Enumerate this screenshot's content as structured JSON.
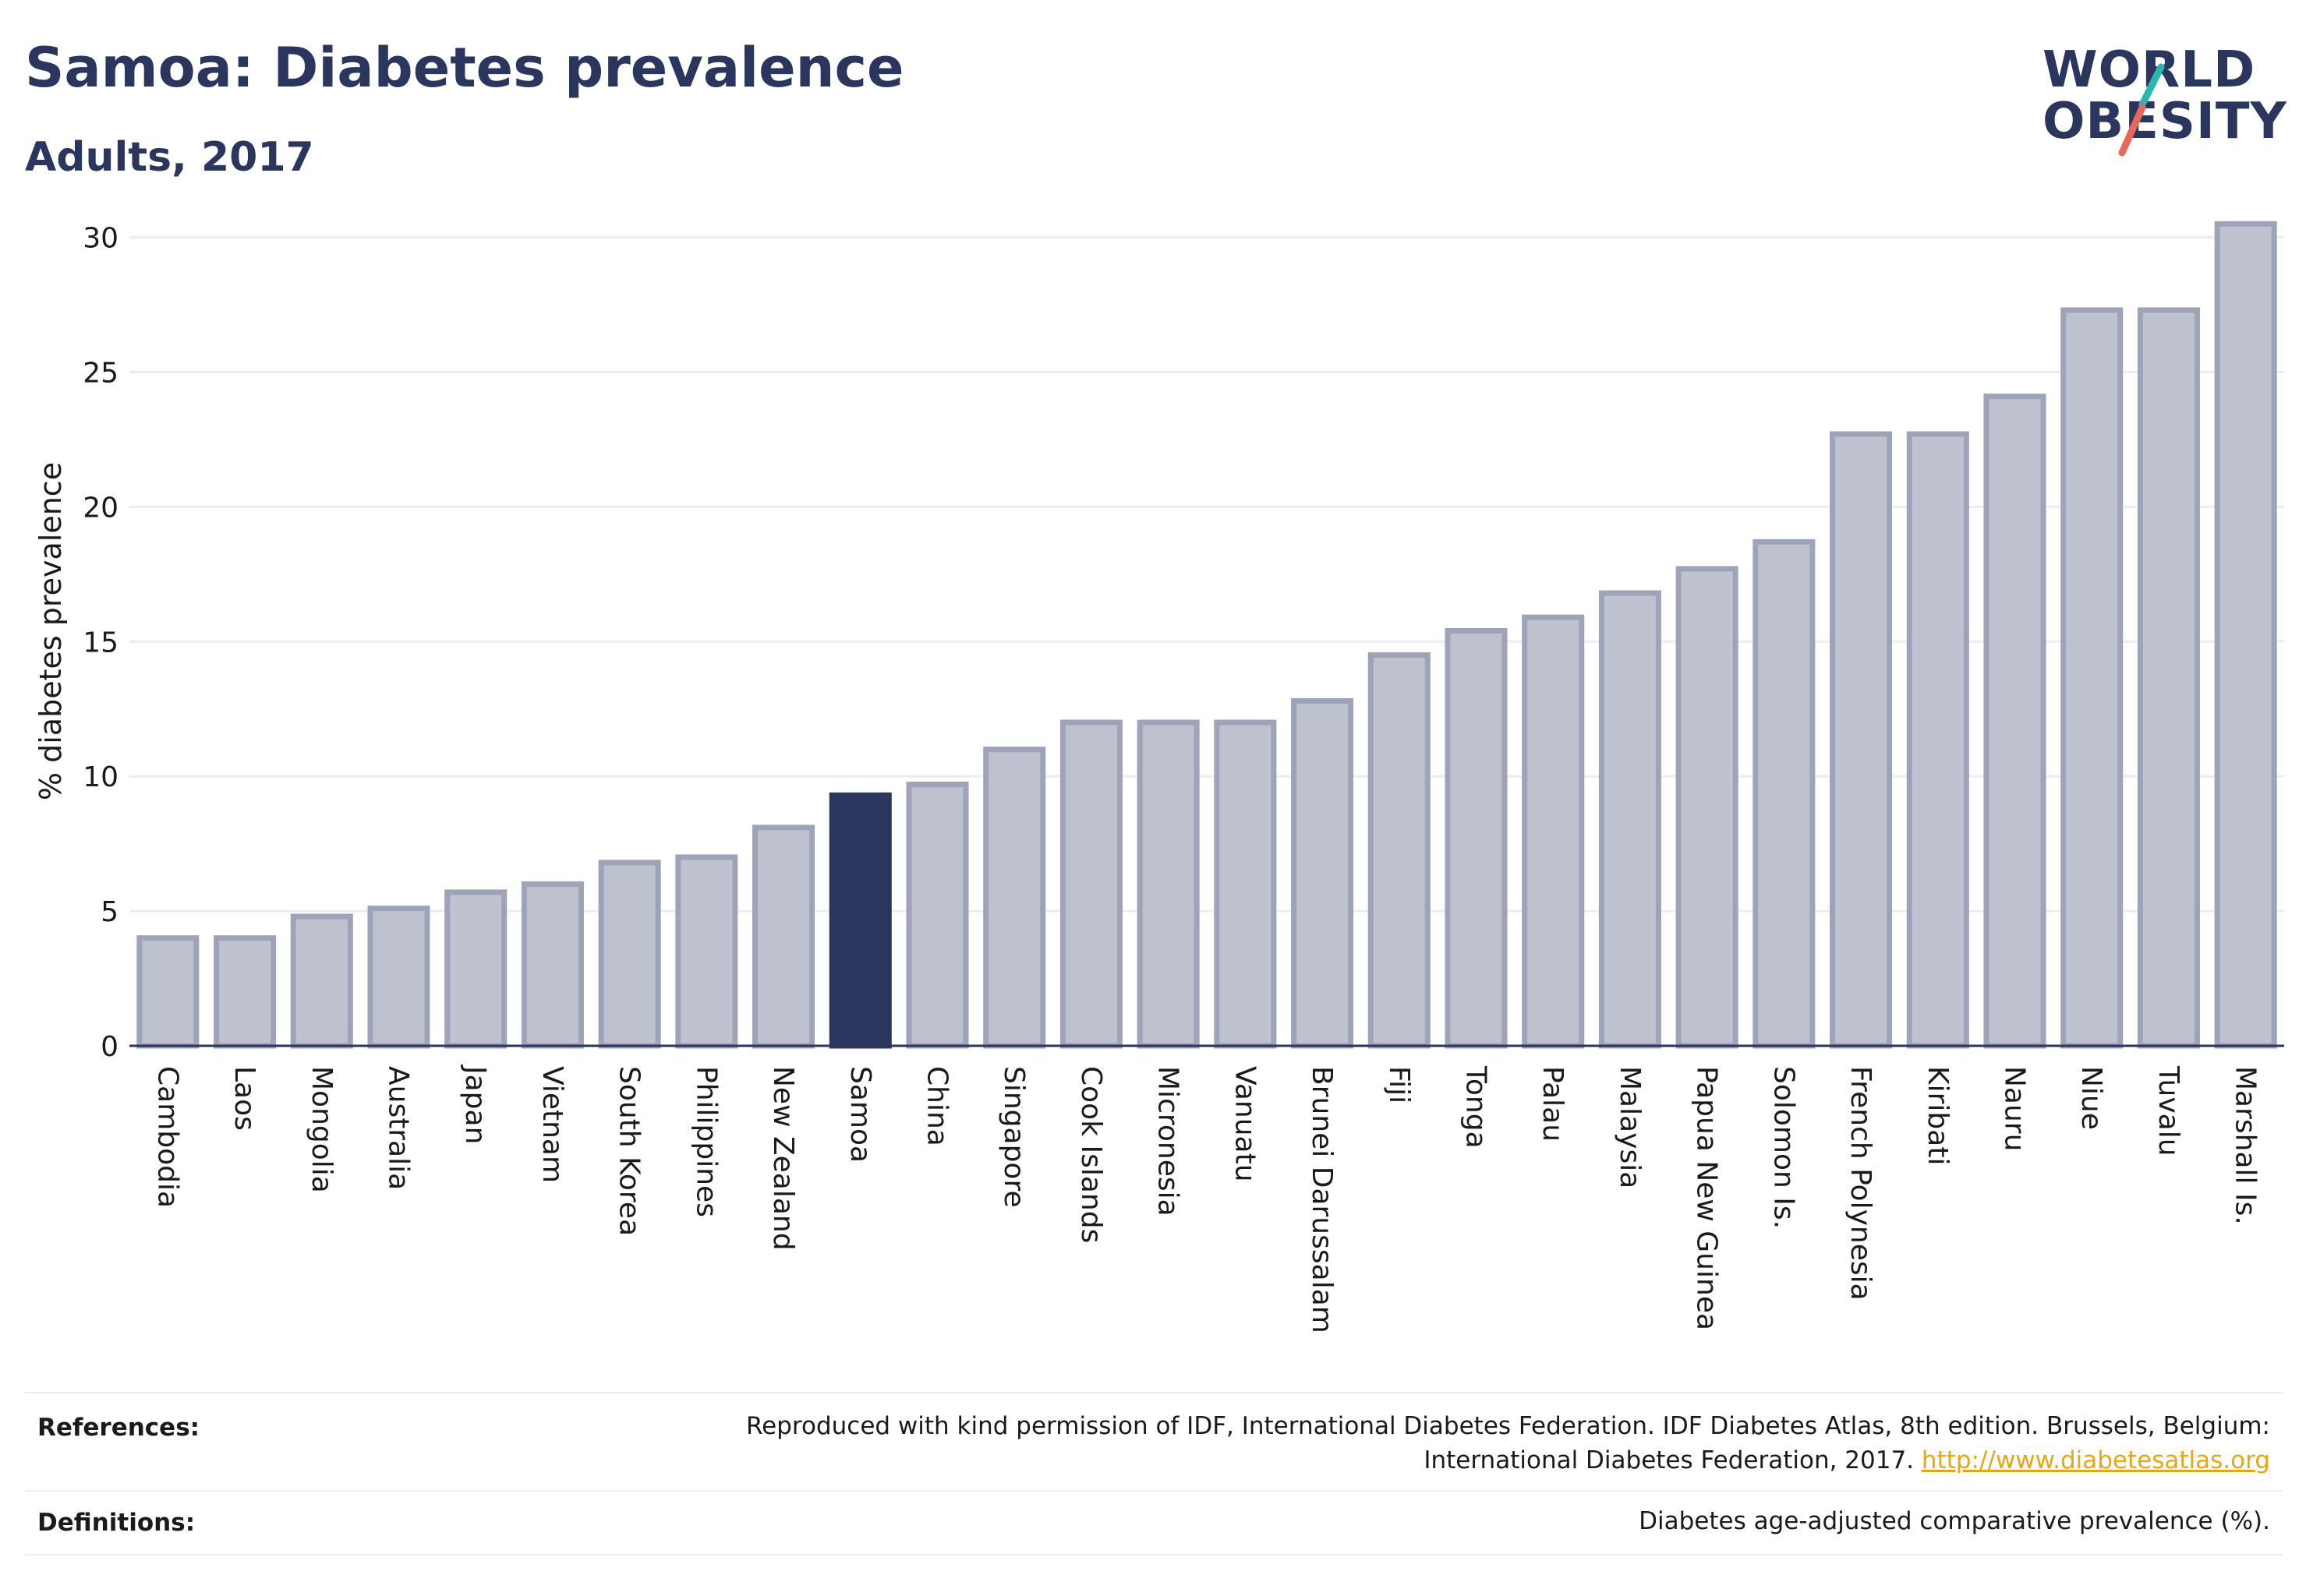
{
  "header": {
    "title": "Samoa: Diabetes prevalence",
    "subtitle": "Adults, 2017"
  },
  "logo": {
    "line1": "WORLD",
    "line2": "OBESITY",
    "accent_teal": "#2bb5b0",
    "accent_coral": "#e5685a"
  },
  "colors": {
    "bar_default": "#bec2cf",
    "bar_border": "#9ea3b8",
    "bar_highlight": "#2b365e",
    "text": "#2b365e",
    "grid": "#ececf2"
  },
  "chart_data": {
    "type": "bar",
    "ylabel": "% diabetes prevalence",
    "ylim": [
      0,
      31
    ],
    "yticks": [
      0,
      5,
      10,
      15,
      20,
      25,
      30
    ],
    "highlight": "Samoa",
    "grid": true,
    "categories": [
      "Cambodia",
      "Laos",
      "Mongolia",
      "Australia",
      "Japan",
      "Vietnam",
      "South Korea",
      "Philippines",
      "New Zealand",
      "Samoa",
      "China",
      "Singapore",
      "Cook Islands",
      "Micronesia",
      "Vanuatu",
      "Brunei Darussalam",
      "Fiji",
      "Tonga",
      "Palau",
      "Malaysia",
      "Papua New Guinea",
      "Solomon Is.",
      "French Polynesia",
      "Kiribati",
      "Nauru",
      "Niue",
      "Tuvalu",
      "Marshall Is."
    ],
    "values": [
      4.0,
      4.0,
      4.8,
      5.1,
      5.7,
      6.0,
      6.8,
      7.0,
      8.1,
      9.3,
      9.7,
      11.0,
      12.0,
      12.0,
      12.0,
      12.8,
      14.5,
      15.4,
      15.9,
      16.8,
      17.7,
      18.7,
      22.7,
      22.7,
      24.1,
      27.3,
      27.3,
      30.5
    ]
  },
  "footer": {
    "references_label": "References:",
    "references_line1": "Reproduced with kind permission of IDF, International Diabetes Federation. IDF Diabetes Atlas, 8th edition. Brussels, Belgium:",
    "references_line2": "International Diabetes Federation, 2017.",
    "references_link": "http://www.diabetesatlas.org",
    "definitions_label": "Definitions:",
    "definitions_text": "Diabetes age-adjusted comparative prevalence (%)."
  }
}
